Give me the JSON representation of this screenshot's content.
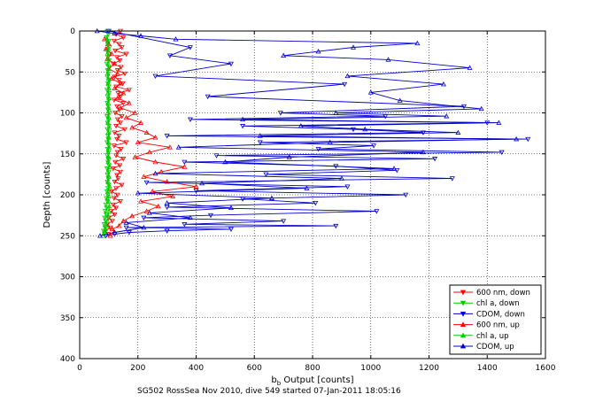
{
  "figure": {
    "caption": "SG502 RossSea Nov 2010, dive 549 started 07-Jan-2011 18:05:16"
  },
  "chart_data": {
    "type": "line",
    "title": "",
    "xlabel_main": "b",
    "xlabel_sub": "b",
    "xlabel_rest": " Output [counts]",
    "ylabel": "Depth [counts]",
    "xlim": [
      0,
      1600
    ],
    "ylim": [
      0,
      400
    ],
    "y_reversed": true,
    "grid": true,
    "xticks": [
      0,
      200,
      400,
      600,
      800,
      1000,
      1200,
      1400,
      1600
    ],
    "yticks": [
      0,
      50,
      100,
      150,
      200,
      250,
      300,
      350,
      400
    ],
    "legend_position": "bottom-right",
    "series": [
      {
        "name": "600 nm, down",
        "color": "#ff0000",
        "marker": "triangle-down",
        "x": [
          140,
          125,
          150,
          118,
          135,
          145,
          122,
          160,
          128,
          138,
          115,
          142,
          130,
          155,
          120,
          135,
          148,
          125,
          170,
          132,
          140,
          118,
          150,
          128,
          136,
          122,
          145,
          130,
          140,
          125,
          155,
          120,
          135,
          128,
          160,
          118,
          142,
          130,
          125,
          150,
          122,
          138,
          115,
          140,
          128,
          132,
          120,
          145,
          125,
          110,
          130,
          118,
          140,
          115,
          125,
          108,
          120,
          100,
          112,
          95,
          105,
          88,
          98
        ],
        "y": [
          0,
          4,
          8,
          12,
          16,
          20,
          24,
          28,
          32,
          36,
          40,
          44,
          48,
          52,
          56,
          60,
          64,
          68,
          72,
          76,
          80,
          84,
          88,
          92,
          96,
          100,
          104,
          108,
          112,
          116,
          120,
          124,
          128,
          132,
          136,
          140,
          144,
          148,
          152,
          156,
          160,
          164,
          168,
          172,
          176,
          180,
          184,
          188,
          192,
          196,
          200,
          204,
          208,
          212,
          216,
          220,
          224,
          228,
          232,
          236,
          240,
          244,
          248
        ]
      },
      {
        "name": "chl a, down",
        "color": "#00cc00",
        "marker": "triangle-down",
        "x": [
          95,
          98,
          92,
          100,
          96,
          102,
          94,
          99,
          97,
          101,
          93,
          100,
          96,
          98,
          95,
          103,
          97,
          99,
          94,
          101,
          96,
          100,
          95,
          98,
          97,
          102,
          94,
          99,
          96,
          100,
          95,
          101,
          97,
          98,
          94,
          100,
          96,
          99,
          95,
          98,
          97,
          101,
          94,
          100,
          96,
          98,
          95,
          99,
          97,
          94,
          96,
          92,
          95,
          90,
          93,
          88,
          91,
          86,
          89,
          84,
          87,
          82,
          85
        ],
        "y": [
          0,
          4,
          8,
          12,
          16,
          20,
          24,
          28,
          32,
          36,
          40,
          44,
          48,
          52,
          56,
          60,
          64,
          68,
          72,
          76,
          80,
          84,
          88,
          92,
          96,
          100,
          104,
          108,
          112,
          116,
          120,
          124,
          128,
          132,
          136,
          140,
          144,
          148,
          152,
          156,
          160,
          164,
          168,
          172,
          176,
          180,
          184,
          188,
          192,
          196,
          200,
          204,
          208,
          212,
          216,
          220,
          224,
          228,
          232,
          236,
          240,
          244,
          248
        ]
      },
      {
        "name": "CDOM, down",
        "color": "#0000cc",
        "marker": "triangle-down",
        "x": [
          100,
          380,
          310,
          520,
          260,
          910,
          440,
          1320,
          690,
          1050,
          380,
          1400,
          560,
          940,
          1180,
          300,
          1540,
          620,
          1010,
          820,
          1450,
          470,
          1220,
          360,
          880,
          1090,
          640,
          1280,
          230,
          920,
          400,
          1120,
          560,
          810,
          300,
          1020,
          450,
          220,
          700,
          360,
          880,
          160,
          520,
          300,
          170,
          120,
          90
        ],
        "y": [
          0,
          20,
          30,
          40,
          55,
          65,
          80,
          92,
          100,
          104,
          108,
          112,
          116,
          120,
          124,
          128,
          132,
          136,
          140,
          144,
          148,
          152,
          156,
          160,
          165,
          170,
          175,
          180,
          185,
          190,
          195,
          200,
          205,
          210,
          215,
          220,
          225,
          228,
          232,
          236,
          238,
          240,
          242,
          244,
          246,
          248,
          250
        ]
      },
      {
        "name": "600 nm, up",
        "color": "#ff0000",
        "marker": "triangle-up",
        "x": [
          105,
          120,
          112,
          135,
          150,
          180,
          230,
          270,
          210,
          320,
          250,
          400,
          300,
          220,
          280,
          360,
          260,
          190,
          240,
          310,
          200,
          260,
          230,
          180,
          210,
          160,
          190,
          140,
          170,
          130,
          150,
          120,
          140,
          110,
          130,
          100,
          120,
          95,
          110,
          90,
          100,
          85
        ],
        "y": [
          250,
          246,
          242,
          238,
          232,
          226,
          220,
          214,
          208,
          202,
          196,
          190,
          184,
          178,
          172,
          166,
          160,
          154,
          148,
          142,
          136,
          130,
          124,
          118,
          112,
          106,
          100,
          94,
          88,
          82,
          76,
          70,
          64,
          58,
          52,
          46,
          40,
          34,
          28,
          22,
          16,
          10
        ]
      },
      {
        "name": "chl a, up",
        "color": "#00cc00",
        "marker": "triangle-up",
        "x": [
          80,
          85,
          88,
          92,
          95,
          98,
          100,
          102,
          99,
          101,
          98,
          103,
          97,
          100,
          96,
          102,
          98,
          100,
          97,
          101,
          99,
          100,
          98,
          102,
          97,
          100,
          96,
          99,
          98,
          101,
          97,
          100,
          98,
          99,
          96,
          100,
          98,
          97,
          95,
          98,
          96,
          94
        ],
        "y": [
          250,
          246,
          242,
          238,
          232,
          226,
          220,
          214,
          208,
          202,
          196,
          190,
          184,
          178,
          172,
          166,
          160,
          154,
          148,
          142,
          136,
          130,
          124,
          118,
          112,
          106,
          100,
          94,
          88,
          82,
          76,
          70,
          64,
          58,
          52,
          46,
          40,
          34,
          28,
          22,
          16,
          10
        ]
      },
      {
        "name": "CDOM, up",
        "color": "#0000cc",
        "marker": "triangle-up",
        "x": [
          70,
          120,
          220,
          160,
          380,
          240,
          520,
          300,
          660,
          200,
          780,
          420,
          900,
          260,
          1080,
          500,
          720,
          1180,
          340,
          860,
          1500,
          620,
          1300,
          980,
          760,
          1440,
          560,
          1260,
          880,
          1380,
          1100,
          1000,
          1250,
          920,
          1340,
          1060,
          700,
          820,
          940,
          1160,
          330,
          210,
          120,
          60
        ],
        "y": [
          250,
          246,
          240,
          234,
          228,
          222,
          216,
          210,
          204,
          198,
          192,
          186,
          180,
          174,
          168,
          160,
          154,
          148,
          142,
          136,
          132,
          128,
          124,
          120,
          116,
          112,
          108,
          104,
          100,
          95,
          85,
          75,
          65,
          55,
          45,
          35,
          30,
          25,
          20,
          15,
          10,
          6,
          3,
          0
        ]
      }
    ]
  }
}
